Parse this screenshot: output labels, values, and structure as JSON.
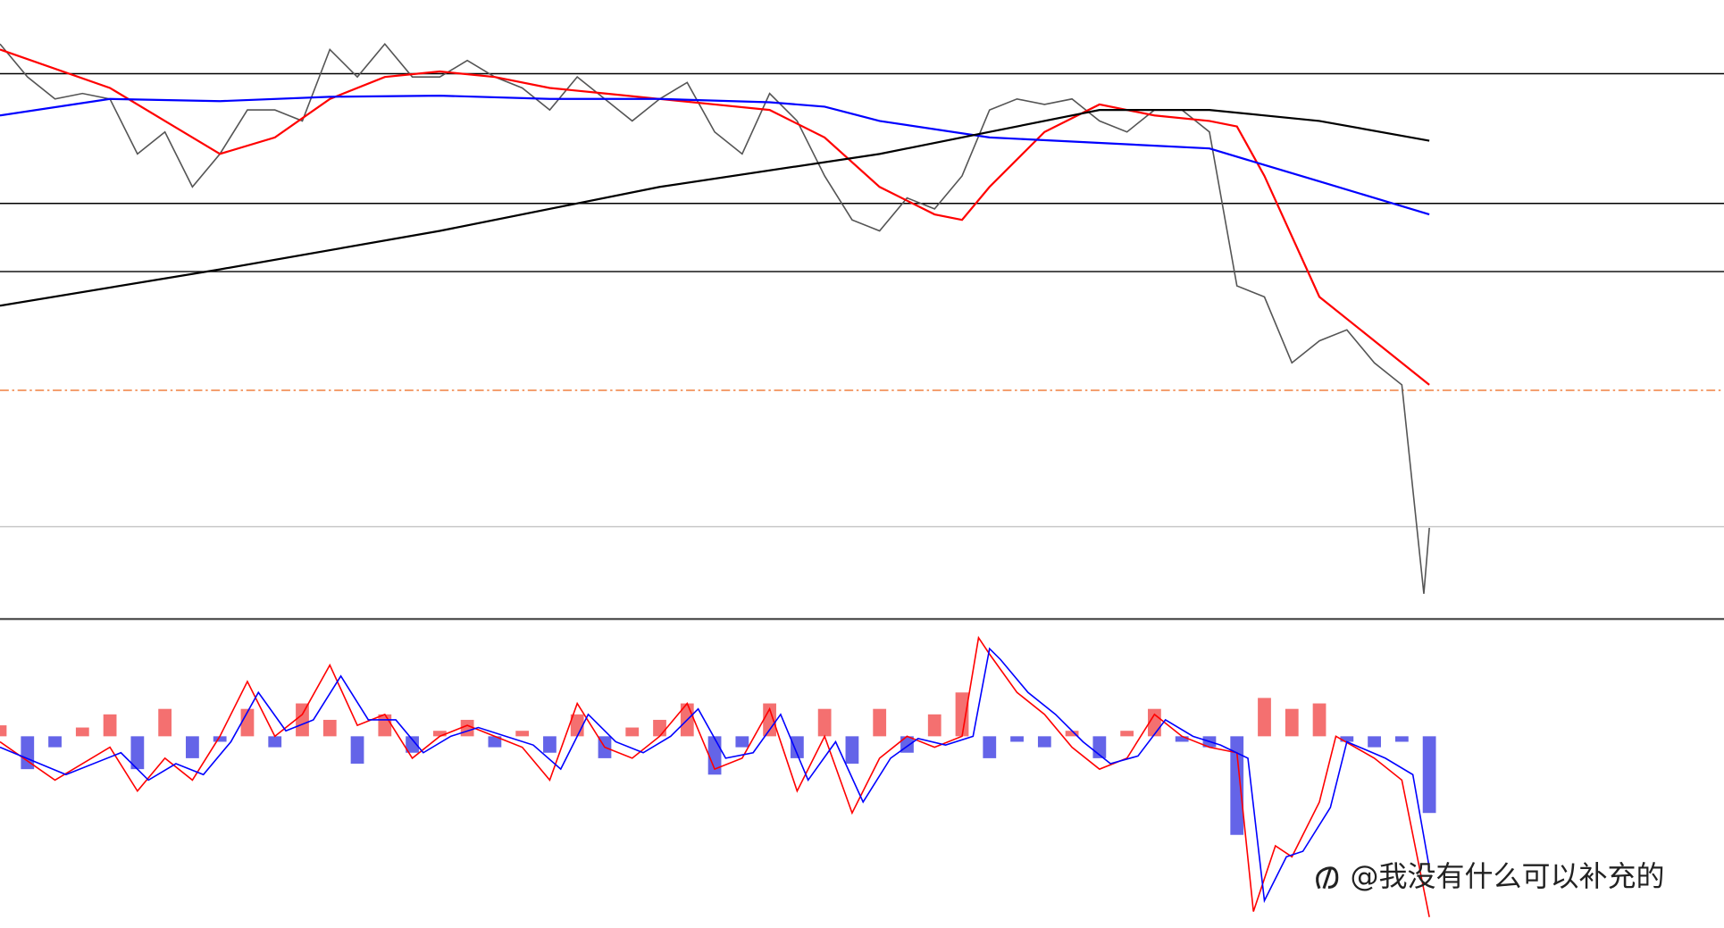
{
  "chart_data": [
    {
      "type": "line",
      "xlim": [
        0,
        1568
      ],
      "ylim": [
        0,
        562
      ],
      "levels": [
        {
          "value": 495,
          "color": "#000000",
          "style": "solid"
        },
        {
          "value": 377,
          "color": "#000000",
          "style": "solid"
        },
        {
          "value": 315,
          "color": "#000000",
          "style": "solid"
        },
        {
          "value": 207,
          "color": "#f08040",
          "style": "dashdot"
        },
        {
          "value": 83,
          "color": "#c8c8c8",
          "style": "solid"
        }
      ],
      "series": [
        {
          "color": "#555555",
          "x": [
            0,
            25,
            50,
            75,
            100,
            125,
            150,
            175,
            200,
            225,
            250,
            275,
            300,
            325,
            350,
            375,
            400,
            425,
            450,
            475,
            500,
            525,
            550,
            575,
            600,
            625,
            650,
            675,
            700,
            725,
            750,
            775,
            800,
            825,
            850,
            875,
            900,
            925,
            950,
            975,
            1000,
            1025,
            1050,
            1075,
            1100,
            1125,
            1150,
            1175,
            1200,
            1225,
            1250,
            1275,
            1295,
            1300
          ],
          "values": [
            522,
            492,
            472,
            477,
            472,
            422,
            442,
            392,
            422,
            462,
            462,
            452,
            517,
            492,
            522,
            492,
            492,
            507,
            492,
            482,
            462,
            492,
            472,
            452,
            472,
            487,
            442,
            422,
            477,
            452,
            402,
            362,
            352,
            382,
            372,
            402,
            462,
            472,
            467,
            472,
            452,
            442,
            462,
            462,
            442,
            302,
            292,
            232,
            252,
            262,
            232,
            212,
            22,
            82
          ]
        },
        {
          "color": "#ff0000",
          "x": [
            0,
            100,
            150,
            200,
            250,
            300,
            350,
            400,
            450,
            500,
            550,
            600,
            650,
            700,
            750,
            800,
            850,
            875,
            900,
            950,
            1000,
            1050,
            1100,
            1125,
            1150,
            1200,
            1250,
            1300
          ],
          "values": [
            517,
            482,
            452,
            422,
            437,
            472,
            492,
            497,
            492,
            482,
            477,
            472,
            467,
            462,
            437,
            392,
            367,
            362,
            392,
            442,
            467,
            457,
            452,
            447,
            402,
            292,
            252,
            212
          ]
        },
        {
          "color": "#0000ff",
          "x": [
            0,
            100,
            200,
            300,
            400,
            500,
            600,
            700,
            750,
            800,
            900,
            1000,
            1100,
            1150,
            1200,
            1250,
            1300
          ],
          "values": [
            457,
            472,
            470,
            474,
            475,
            472,
            472,
            469,
            465,
            452,
            437,
            432,
            427,
            412,
            397,
            382,
            367
          ]
        },
        {
          "color": "#000000",
          "x": [
            0,
            200,
            400,
            600,
            800,
            900,
            1000,
            1100,
            1200,
            1300
          ],
          "values": [
            284,
            317,
            352,
            392,
            422,
            442,
            462,
            462,
            452,
            434
          ]
        }
      ]
    },
    {
      "type": "macd",
      "xlim": [
        0,
        1568
      ],
      "ylim": [
        -175,
        100
      ],
      "colors": {
        "up": "#f04040",
        "down": "#3030e0"
      },
      "bars": {
        "x": [
          0,
          25,
          50,
          75,
          100,
          125,
          150,
          175,
          200,
          225,
          250,
          275,
          300,
          325,
          350,
          375,
          400,
          425,
          450,
          475,
          500,
          525,
          550,
          575,
          600,
          625,
          650,
          675,
          700,
          725,
          750,
          775,
          800,
          825,
          850,
          875,
          900,
          925,
          950,
          975,
          1000,
          1025,
          1050,
          1075,
          1100,
          1125,
          1150,
          1175,
          1200,
          1225,
          1250,
          1275,
          1300
        ],
        "values": [
          10,
          -30,
          -10,
          8,
          20,
          -30,
          25,
          -20,
          -5,
          25,
          -10,
          30,
          15,
          -25,
          20,
          -15,
          5,
          15,
          -10,
          5,
          -15,
          20,
          -20,
          8,
          15,
          30,
          -35,
          -10,
          30,
          -20,
          25,
          -25,
          25,
          -15,
          20,
          40,
          -20,
          -5,
          -10,
          5,
          -20,
          5,
          25,
          -5,
          -10,
          -90,
          35,
          25,
          30,
          -5,
          -10,
          -5,
          -70
        ]
      },
      "series": [
        {
          "color": "#ff0000",
          "x": [
            0,
            50,
            100,
            125,
            150,
            175,
            200,
            225,
            250,
            275,
            300,
            325,
            350,
            375,
            400,
            425,
            450,
            475,
            500,
            525,
            550,
            575,
            600,
            625,
            650,
            675,
            700,
            725,
            750,
            775,
            800,
            825,
            850,
            875,
            890,
            900,
            925,
            950,
            975,
            1000,
            1025,
            1050,
            1075,
            1100,
            1125,
            1140,
            1160,
            1175,
            1200,
            1215,
            1250,
            1275,
            1300
          ],
          "values": [
            -5,
            -40,
            -10,
            -50,
            -20,
            -40,
            0,
            50,
            0,
            20,
            65,
            10,
            20,
            -20,
            0,
            10,
            0,
            -10,
            -40,
            30,
            -10,
            -20,
            0,
            30,
            -30,
            -20,
            25,
            -50,
            0,
            -70,
            -20,
            0,
            -10,
            0,
            90,
            75,
            40,
            20,
            -10,
            -30,
            -20,
            20,
            0,
            -10,
            -15,
            -160,
            -100,
            -110,
            -60,
            0,
            -20,
            -40,
            -165
          ]
        },
        {
          "color": "#0000ff",
          "x": [
            0,
            60,
            110,
            135,
            160,
            185,
            210,
            235,
            260,
            285,
            310,
            335,
            360,
            385,
            410,
            435,
            460,
            485,
            510,
            535,
            560,
            585,
            610,
            635,
            660,
            685,
            710,
            735,
            760,
            785,
            810,
            835,
            860,
            885,
            900,
            910,
            935,
            960,
            985,
            1010,
            1035,
            1060,
            1085,
            1110,
            1135,
            1150,
            1170,
            1185,
            1210,
            1225,
            1260,
            1285,
            1300
          ],
          "values": [
            -10,
            -35,
            -15,
            -40,
            -25,
            -35,
            -5,
            40,
            5,
            15,
            55,
            15,
            15,
            -15,
            0,
            8,
            0,
            -8,
            -30,
            20,
            -5,
            -15,
            0,
            25,
            -20,
            -15,
            20,
            -40,
            -5,
            -60,
            -20,
            -2,
            -8,
            0,
            80,
            70,
            40,
            20,
            -5,
            -25,
            -18,
            15,
            0,
            -8,
            -20,
            -150,
            -110,
            -105,
            -65,
            -5,
            -20,
            -35,
            -120
          ]
        }
      ]
    }
  ],
  "watermark": "@我没有什么可以补充的"
}
